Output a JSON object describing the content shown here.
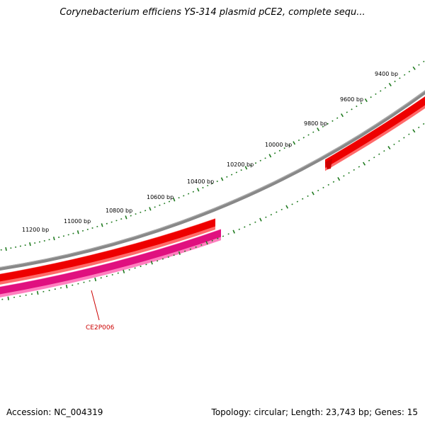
{
  "title": "Corynebacterium efficiens YS-314 plasmid pCE2, complete sequ...",
  "footer": {
    "accession": "Accession: NC_004319",
    "summary": "Topology: circular; Length: 23,743 bp; Genes: 15"
  },
  "scale_labels": [
    "9400 bp",
    "9600 bp",
    "9800 bp",
    "10000 bp",
    "10200 bp",
    "10400 bp",
    "10600 bp",
    "10800 bp",
    "11000 bp",
    "11200 bp"
  ],
  "genes": [
    {
      "label": "CE2P006"
    }
  ],
  "colors": {
    "backbone": "#888888",
    "forward_gene": "#ee0000",
    "reverse_gene": "#e0107f",
    "ticks": "#1f7a1f",
    "gene_label": "#cc0000"
  }
}
